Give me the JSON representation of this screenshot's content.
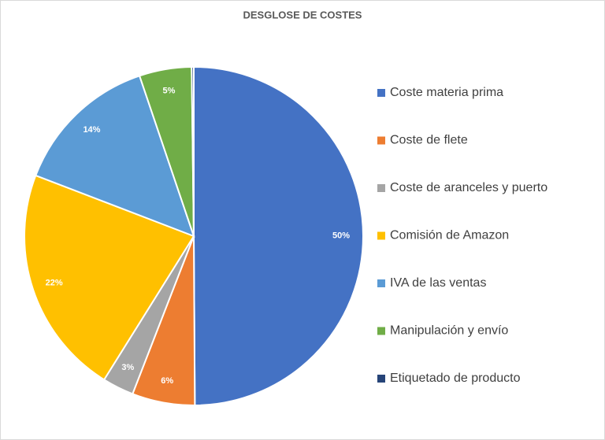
{
  "chart_data": {
    "type": "pie",
    "title": "DESGLOSE DE COSTES",
    "categories": [
      "Coste materia prima",
      "Coste de flete",
      "Coste de aranceles y puerto",
      "Comisión de Amazon",
      "IVA de las ventas",
      "Manipulación y envío",
      "Etiquetado de producto"
    ],
    "values": [
      50,
      6,
      3,
      22,
      14,
      5,
      0.2
    ],
    "value_labels": [
      "50%",
      "6%",
      "3%",
      "22%",
      "14%",
      "5%",
      null
    ],
    "colors": [
      "#4472c4",
      "#ed7d31",
      "#a5a5a5",
      "#ffc000",
      "#5b9bd5",
      "#70ad47",
      "#264478"
    ],
    "legend": "right"
  }
}
